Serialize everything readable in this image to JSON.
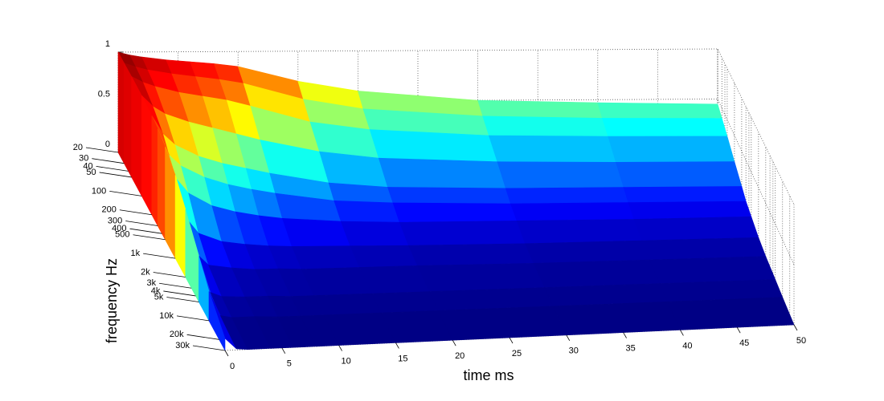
{
  "chart_data": {
    "type": "waterfall",
    "xlabel": "time   ms",
    "ylabel": "frequency   Hz",
    "colormap": "jet",
    "grid": true,
    "yscale": "log",
    "x": [
      0,
      1,
      2,
      4,
      6,
      8,
      10,
      15,
      20,
      30,
      40,
      50
    ],
    "y": [
      20,
      30,
      50,
      100,
      200,
      300,
      500,
      1000,
      2000,
      5000,
      10000,
      30000
    ],
    "z": [
      [
        1.0,
        0.97,
        0.95,
        0.92,
        0.9,
        0.88,
        0.85,
        0.7,
        0.6,
        0.5,
        0.47,
        0.45
      ],
      [
        0.99,
        0.95,
        0.92,
        0.88,
        0.85,
        0.82,
        0.78,
        0.62,
        0.52,
        0.44,
        0.41,
        0.4
      ],
      [
        0.98,
        0.92,
        0.88,
        0.82,
        0.78,
        0.74,
        0.68,
        0.52,
        0.44,
        0.37,
        0.35,
        0.34
      ],
      [
        0.96,
        0.85,
        0.78,
        0.7,
        0.64,
        0.58,
        0.52,
        0.4,
        0.33,
        0.28,
        0.26,
        0.25
      ],
      [
        0.93,
        0.75,
        0.65,
        0.54,
        0.47,
        0.42,
        0.37,
        0.27,
        0.22,
        0.19,
        0.18,
        0.17
      ],
      [
        0.9,
        0.65,
        0.55,
        0.44,
        0.37,
        0.32,
        0.28,
        0.2,
        0.17,
        0.14,
        0.13,
        0.12
      ],
      [
        0.85,
        0.55,
        0.42,
        0.3,
        0.24,
        0.2,
        0.17,
        0.13,
        0.11,
        0.1,
        0.09,
        0.09
      ],
      [
        0.75,
        0.35,
        0.22,
        0.14,
        0.11,
        0.09,
        0.08,
        0.07,
        0.06,
        0.05,
        0.05,
        0.05
      ],
      [
        0.6,
        0.2,
        0.1,
        0.07,
        0.05,
        0.05,
        0.04,
        0.04,
        0.04,
        0.03,
        0.03,
        0.03
      ],
      [
        0.4,
        0.08,
        0.04,
        0.03,
        0.03,
        0.02,
        0.02,
        0.02,
        0.02,
        0.02,
        0.02,
        0.02
      ],
      [
        0.25,
        0.04,
        0.02,
        0.02,
        0.01,
        0.01,
        0.01,
        0.01,
        0.01,
        0.01,
        0.01,
        0.01
      ],
      [
        0.1,
        0.01,
        0.0,
        0.0,
        0.0,
        0.0,
        0.0,
        0.0,
        0.0,
        0.0,
        0.0,
        0.0
      ]
    ],
    "xlim": [
      0,
      50
    ],
    "xticks": [
      0,
      5,
      10,
      15,
      20,
      25,
      30,
      35,
      40,
      45,
      50
    ],
    "ylim": [
      20,
      30000
    ],
    "yticks": [
      20,
      30,
      40,
      50,
      100,
      200,
      300,
      400,
      500,
      {
        "value": 1000,
        "label": "1k"
      },
      {
        "value": 2000,
        "label": "2k"
      },
      {
        "value": 3000,
        "label": "3k"
      },
      {
        "value": 4000,
        "label": "4k"
      },
      {
        "value": 5000,
        "label": "5k"
      },
      {
        "value": 10000,
        "label": "10k"
      },
      {
        "value": 20000,
        "label": "20k"
      },
      {
        "value": 30000,
        "label": "30k"
      }
    ],
    "zlim": [
      0,
      1
    ],
    "zticks": [
      0,
      0.5,
      1
    ]
  }
}
